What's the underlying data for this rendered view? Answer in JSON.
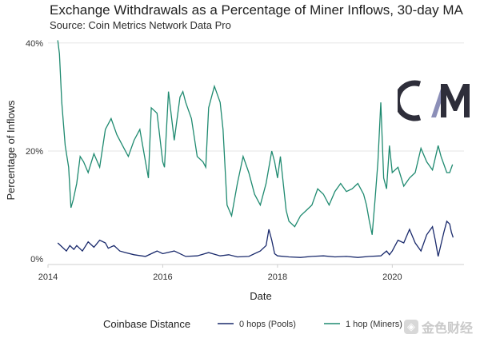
{
  "header": {
    "title": "Exchange Withdrawals as a Percentage of Miner Inflows, 30-day MA",
    "subtitle": "Source: Coin Metrics Network Data Pro"
  },
  "logo": {
    "icon": "coin-metrics-logo"
  },
  "watermark": {
    "text": "金色财经",
    "icon": "jinse-logo-icon"
  },
  "colors": {
    "pools": "#1a2a6c",
    "miners": "#1f8a70",
    "grid": "#e6e6e6",
    "axis": "#cfcfcf"
  },
  "legend": {
    "title": "Coinbase Distance",
    "items": [
      "0 hops (Pools)",
      "1 hop (Miners)"
    ]
  },
  "chart_data": {
    "type": "line",
    "title": "Exchange Withdrawals as a Percentage of Miner Inflows, 30-day MA",
    "xlabel": "Date",
    "ylabel": "Percentage of Inflows",
    "x_ticks": [
      "2014",
      "2016",
      "2018",
      "2020"
    ],
    "y_ticks": [
      "0%",
      "20%",
      "40%"
    ],
    "xlim": [
      2014.0,
      2021.25
    ],
    "ylim": [
      -1,
      41
    ],
    "grid": "horizontal",
    "legend_position": "bottom",
    "series": [
      {
        "name": "1 hop (Miners)",
        "x": [
          2014.17,
          2014.2,
          2014.24,
          2014.3,
          2014.36,
          2014.4,
          2014.44,
          2014.5,
          2014.56,
          2014.62,
          2014.7,
          2014.8,
          2014.9,
          2015.0,
          2015.1,
          2015.2,
          2015.3,
          2015.4,
          2015.5,
          2015.6,
          2015.7,
          2015.75,
          2015.8,
          2015.9,
          2016.0,
          2016.03,
          2016.1,
          2016.2,
          2016.3,
          2016.35,
          2016.4,
          2016.5,
          2016.6,
          2016.7,
          2016.75,
          2016.8,
          2016.9,
          2017.0,
          2017.05,
          2017.12,
          2017.2,
          2017.25,
          2017.3,
          2017.4,
          2017.5,
          2017.6,
          2017.7,
          2017.8,
          2017.9,
          2017.95,
          2018.0,
          2018.05,
          2018.1,
          2018.15,
          2018.2,
          2018.3,
          2018.4,
          2018.5,
          2018.6,
          2018.7,
          2018.8,
          2018.9,
          2019.0,
          2019.1,
          2019.2,
          2019.3,
          2019.4,
          2019.5,
          2019.55,
          2019.6,
          2019.65,
          2019.7,
          2019.75,
          2019.8,
          2019.85,
          2019.9,
          2019.95,
          2020.0,
          2020.1,
          2020.2,
          2020.3,
          2020.4,
          2020.5,
          2020.6,
          2020.7,
          2020.8,
          2020.85,
          2020.9,
          2020.95,
          2021.0,
          2021.05
        ],
        "y": [
          40.5,
          38,
          29,
          21,
          17,
          9.5,
          11,
          14,
          19,
          18,
          16,
          19.5,
          17,
          24,
          26,
          23,
          21,
          19,
          22,
          24,
          18,
          15,
          28,
          27,
          18,
          17,
          31,
          22,
          30,
          31,
          29,
          26,
          19,
          18,
          17,
          28,
          32,
          29,
          24,
          10,
          8,
          11,
          14,
          19,
          16,
          12,
          10,
          14,
          20,
          18,
          15,
          19,
          14,
          9,
          7,
          6,
          8,
          9,
          10,
          13,
          12,
          10,
          12.5,
          14,
          12.5,
          13,
          14,
          12,
          10,
          7,
          4.5,
          11,
          18,
          29,
          15,
          13,
          21,
          16,
          17,
          13.5,
          15,
          16,
          20.5,
          18,
          16.5,
          21,
          19,
          17.5,
          16,
          16,
          17.5
        ]
      },
      {
        "name": "0 hops (Pools)",
        "x": [
          2014.17,
          2014.25,
          2014.32,
          2014.38,
          2014.45,
          2014.5,
          2014.6,
          2014.7,
          2014.8,
          2014.9,
          2015.0,
          2015.05,
          2015.15,
          2015.25,
          2015.35,
          2015.5,
          2015.7,
          2015.9,
          2016.0,
          2016.2,
          2016.4,
          2016.6,
          2016.8,
          2017.0,
          2017.15,
          2017.3,
          2017.5,
          2017.7,
          2017.8,
          2017.85,
          2017.9,
          2017.95,
          2018.0,
          2018.2,
          2018.4,
          2018.6,
          2018.8,
          2019.0,
          2019.2,
          2019.4,
          2019.6,
          2019.8,
          2019.9,
          2019.95,
          2020.0,
          2020.1,
          2020.2,
          2020.3,
          2020.4,
          2020.5,
          2020.6,
          2020.7,
          2020.75,
          2020.8,
          2020.9,
          2020.95,
          2021.0,
          2021.03,
          2021.06
        ],
        "y": [
          3,
          2.2,
          1.5,
          2.5,
          1.8,
          2.5,
          1.5,
          3.2,
          2.2,
          3.5,
          3,
          2,
          2.5,
          1.5,
          1.2,
          0.8,
          0.5,
          1.5,
          1,
          1.5,
          0.5,
          0.6,
          1.2,
          0.6,
          0.8,
          0.4,
          0.5,
          1.5,
          2.5,
          5.5,
          3.5,
          1,
          0.6,
          0.4,
          0.3,
          0.5,
          0.6,
          0.4,
          0.5,
          0.3,
          0.5,
          0.6,
          1.5,
          0.8,
          1.5,
          3.5,
          3,
          5.5,
          3,
          1.5,
          4.5,
          6,
          3.5,
          0.5,
          5,
          7,
          6.5,
          5,
          4
        ]
      }
    ]
  }
}
